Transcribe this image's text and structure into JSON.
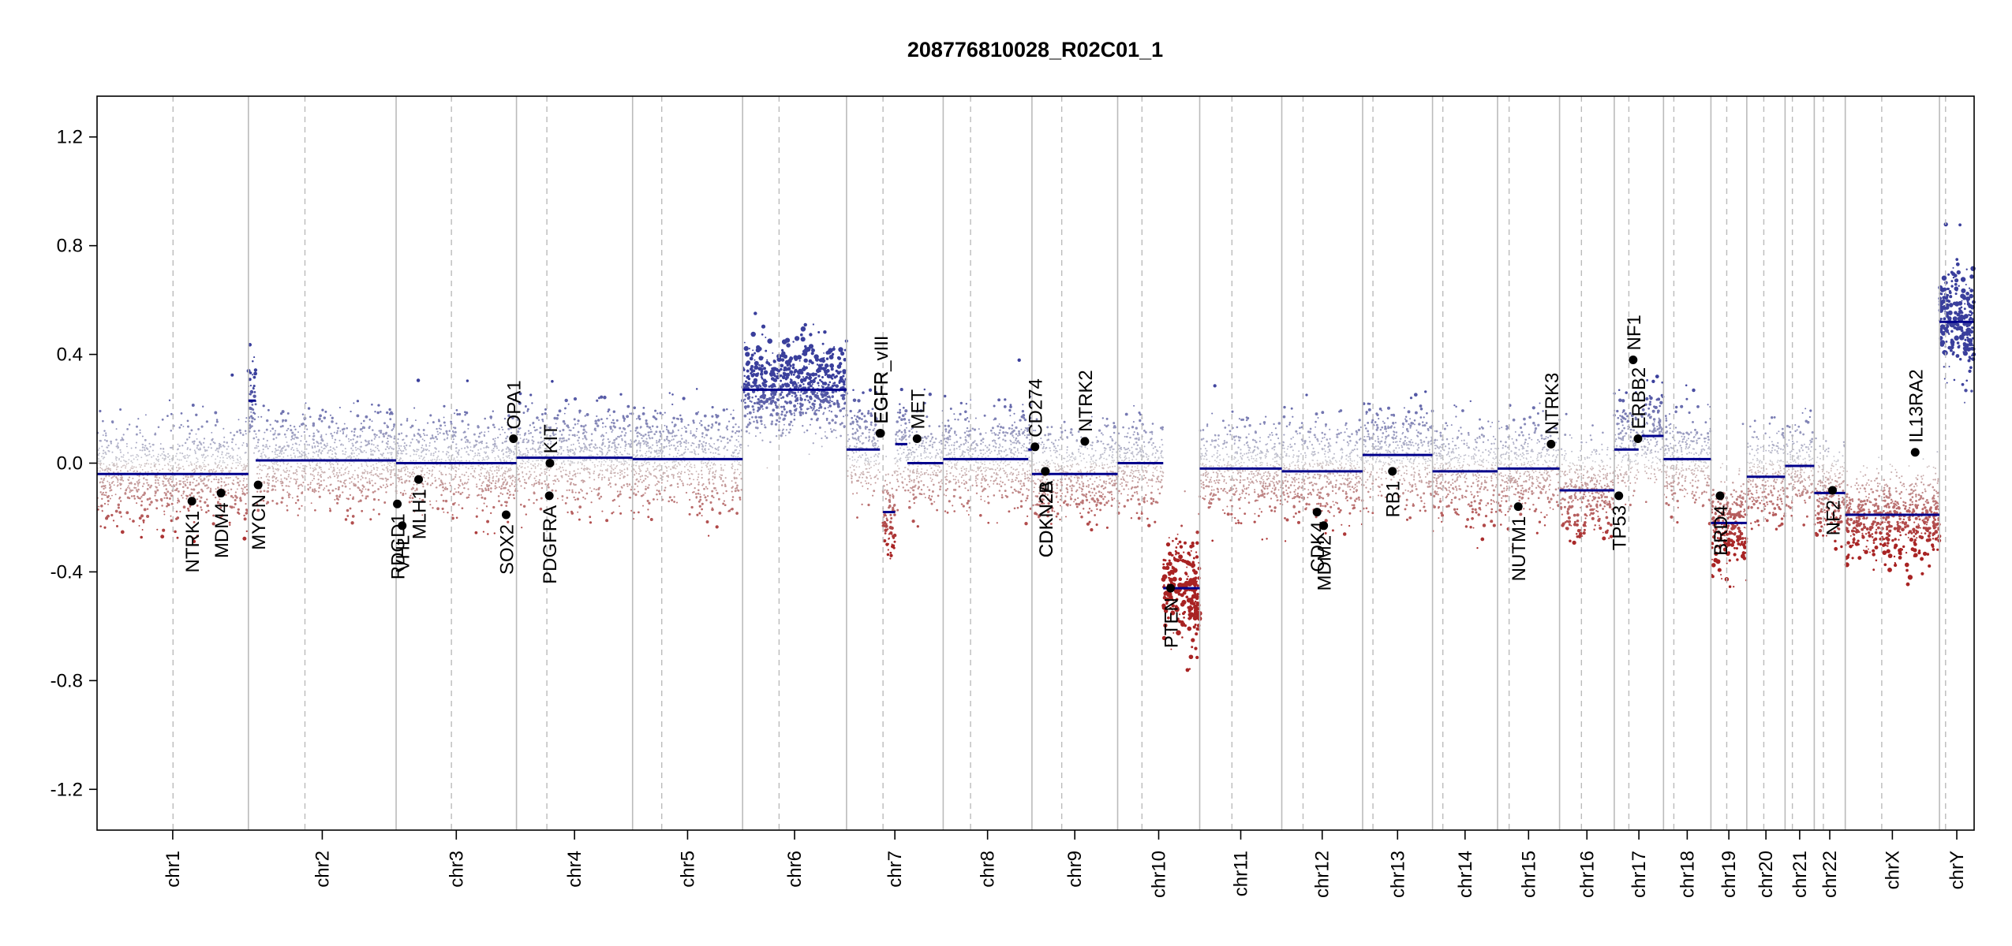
{
  "chart_data": {
    "type": "scatter",
    "title": "208776810028_R02C01_1",
    "xlabel": "",
    "ylabel": "",
    "ylim": [
      -1.35,
      1.35
    ],
    "y_ticks": [
      1.2,
      0.8,
      0.4,
      0.0,
      -0.4,
      -0.8,
      -1.2
    ],
    "y_tick_labels": [
      "1.2",
      "0.8",
      "0.4",
      "0.0",
      "-0.4",
      "-0.8",
      "-1.2"
    ],
    "chromosomes": [
      {
        "name": "chr1",
        "length_mb": 249,
        "centromere_mb": 125
      },
      {
        "name": "chr2",
        "length_mb": 243,
        "centromere_mb": 93
      },
      {
        "name": "chr3",
        "length_mb": 198,
        "centromere_mb": 91
      },
      {
        "name": "chr4",
        "length_mb": 191,
        "centromere_mb": 50
      },
      {
        "name": "chr5",
        "length_mb": 181,
        "centromere_mb": 48
      },
      {
        "name": "chr6",
        "length_mb": 171,
        "centromere_mb": 60
      },
      {
        "name": "chr7",
        "length_mb": 159,
        "centromere_mb": 60
      },
      {
        "name": "chr8",
        "length_mb": 146,
        "centromere_mb": 45
      },
      {
        "name": "chr9",
        "length_mb": 141,
        "centromere_mb": 49
      },
      {
        "name": "chr10",
        "length_mb": 135,
        "centromere_mb": 40
      },
      {
        "name": "chr11",
        "length_mb": 135,
        "centromere_mb": 53
      },
      {
        "name": "chr12",
        "length_mb": 133,
        "centromere_mb": 35
      },
      {
        "name": "chr13",
        "length_mb": 115,
        "centromere_mb": 17
      },
      {
        "name": "chr14",
        "length_mb": 107,
        "centromere_mb": 17
      },
      {
        "name": "chr15",
        "length_mb": 102,
        "centromere_mb": 19
      },
      {
        "name": "chr16",
        "length_mb": 90,
        "centromere_mb": 36
      },
      {
        "name": "chr17",
        "length_mb": 81,
        "centromere_mb": 24
      },
      {
        "name": "chr18",
        "length_mb": 78,
        "centromere_mb": 17
      },
      {
        "name": "chr19",
        "length_mb": 59,
        "centromere_mb": 26
      },
      {
        "name": "chr20",
        "length_mb": 63,
        "centromere_mb": 28
      },
      {
        "name": "chr21",
        "length_mb": 48,
        "centromere_mb": 12
      },
      {
        "name": "chr22",
        "length_mb": 51,
        "centromere_mb": 15
      },
      {
        "name": "chrX",
        "length_mb": 155,
        "centromere_mb": 60
      },
      {
        "name": "chrY",
        "length_mb": 57,
        "centromere_mb": 10
      }
    ],
    "segments": [
      {
        "chr": "chr1",
        "start": 0,
        "end": 249,
        "value": -0.04
      },
      {
        "chr": "chr2",
        "start": 0,
        "end": 12,
        "value": 0.23
      },
      {
        "chr": "chr2",
        "start": 12,
        "end": 243,
        "value": 0.01
      },
      {
        "chr": "chr3",
        "start": 0,
        "end": 198,
        "value": 0.0
      },
      {
        "chr": "chr4",
        "start": 0,
        "end": 191,
        "value": 0.02
      },
      {
        "chr": "chr5",
        "start": 0,
        "end": 181,
        "value": 0.015
      },
      {
        "chr": "chr6",
        "start": 0,
        "end": 171,
        "value": 0.27
      },
      {
        "chr": "chr7",
        "start": 0,
        "end": 55,
        "value": 0.05
      },
      {
        "chr": "chr7",
        "start": 60,
        "end": 80,
        "value": -0.18
      },
      {
        "chr": "chr7",
        "start": 80,
        "end": 100,
        "value": 0.07
      },
      {
        "chr": "chr7",
        "start": 100,
        "end": 159,
        "value": 0.0
      },
      {
        "chr": "chr8",
        "start": 0,
        "end": 140,
        "value": 0.015
      },
      {
        "chr": "chr8",
        "start": 140,
        "end": 146,
        "value": 0.05
      },
      {
        "chr": "chr9",
        "start": 0,
        "end": 141,
        "value": -0.04
      },
      {
        "chr": "chr10",
        "start": 0,
        "end": 75,
        "value": 0.0
      },
      {
        "chr": "chr10",
        "start": 75,
        "end": 135,
        "value": -0.46
      },
      {
        "chr": "chr11",
        "start": 0,
        "end": 135,
        "value": -0.02
      },
      {
        "chr": "chr12",
        "start": 0,
        "end": 133,
        "value": -0.03
      },
      {
        "chr": "chr13",
        "start": 0,
        "end": 115,
        "value": 0.03
      },
      {
        "chr": "chr14",
        "start": 0,
        "end": 107,
        "value": -0.03
      },
      {
        "chr": "chr15",
        "start": 0,
        "end": 102,
        "value": -0.02
      },
      {
        "chr": "chr16",
        "start": 0,
        "end": 90,
        "value": -0.1
      },
      {
        "chr": "chr17",
        "start": 0,
        "end": 40,
        "value": 0.05
      },
      {
        "chr": "chr17",
        "start": 45,
        "end": 81,
        "value": 0.1
      },
      {
        "chr": "chr18",
        "start": 0,
        "end": 78,
        "value": 0.015
      },
      {
        "chr": "chr19",
        "start": 0,
        "end": 59,
        "value": -0.22
      },
      {
        "chr": "chr20",
        "start": 0,
        "end": 63,
        "value": -0.05
      },
      {
        "chr": "chr21",
        "start": 0,
        "end": 48,
        "value": -0.01
      },
      {
        "chr": "chr22",
        "start": 0,
        "end": 51,
        "value": -0.11
      },
      {
        "chr": "chrX",
        "start": 0,
        "end": 155,
        "value": -0.19
      },
      {
        "chr": "chrY",
        "start": 0,
        "end": 57,
        "value": 0.52
      }
    ],
    "genes": [
      {
        "name": "NTRK1",
        "chr": "chr1",
        "pos": 156,
        "value": -0.14
      },
      {
        "name": "MDM4",
        "chr": "chr1",
        "pos": 204,
        "value": -0.11
      },
      {
        "name": "MYCN",
        "chr": "chr2",
        "pos": 16,
        "value": -0.08
      },
      {
        "name": "RDGD1",
        "chr": "chr3",
        "pos": 2,
        "value": -0.15
      },
      {
        "name": "VHL",
        "chr": "chr3",
        "pos": 10,
        "value": -0.23
      },
      {
        "name": "MLH1",
        "chr": "chr3",
        "pos": 37,
        "value": -0.06
      },
      {
        "name": "SOX2",
        "chr": "chr3",
        "pos": 181,
        "value": -0.19
      },
      {
        "name": "OPA1",
        "chr": "chr3",
        "pos": 193,
        "value": 0.09
      },
      {
        "name": "KIT",
        "chr": "chr4",
        "pos": 55,
        "value": 0.0
      },
      {
        "name": "PDGFRA",
        "chr": "chr4",
        "pos": 54,
        "value": -0.12
      },
      {
        "name": "EGFR",
        "chr": "chr7",
        "pos": 55,
        "value": 0.11
      },
      {
        "name": "EGFR_vIII",
        "chr": "chr7",
        "pos": 56,
        "value": 0.11
      },
      {
        "name": "MET",
        "chr": "chr7",
        "pos": 116,
        "value": 0.09
      },
      {
        "name": "CD274",
        "chr": "chr9",
        "pos": 5,
        "value": 0.06
      },
      {
        "name": "CDKN2A",
        "chr": "chr9",
        "pos": 22,
        "value": -0.03
      },
      {
        "name": "CDKN2B",
        "chr": "chr9",
        "pos": 22,
        "value": -0.03
      },
      {
        "name": "NTRK2",
        "chr": "chr9",
        "pos": 87,
        "value": 0.08
      },
      {
        "name": "PTEN",
        "chr": "chr10",
        "pos": 87,
        "value": -0.46
      },
      {
        "name": "CDK4",
        "chr": "chr12",
        "pos": 58,
        "value": -0.18
      },
      {
        "name": "MDM2",
        "chr": "chr12",
        "pos": 69,
        "value": -0.23
      },
      {
        "name": "RB1",
        "chr": "chr13",
        "pos": 49,
        "value": -0.03
      },
      {
        "name": "NUTM1",
        "chr": "chr15",
        "pos": 34,
        "value": -0.16
      },
      {
        "name": "NTRK3",
        "chr": "chr15",
        "pos": 88,
        "value": 0.07
      },
      {
        "name": "TP53",
        "chr": "chr17",
        "pos": 7.5,
        "value": -0.12
      },
      {
        "name": "ERBB2",
        "chr": "chr17",
        "pos": 39,
        "value": 0.09
      },
      {
        "name": "NF1",
        "chr": "chr17",
        "pos": 31,
        "value": 0.38
      },
      {
        "name": "BRD4",
        "chr": "chr19",
        "pos": 15,
        "value": -0.12
      },
      {
        "name": "NF2",
        "chr": "chr22",
        "pos": 30,
        "value": -0.1
      },
      {
        "name": "IL13RA2",
        "chr": "chrX",
        "pos": 115,
        "value": 0.04
      }
    ],
    "gene_labels": [
      {
        "text": "NTRK1",
        "above": false
      },
      {
        "text": "MDM4",
        "above": false
      },
      {
        "text": "MYCN",
        "above": false
      },
      {
        "text": "RDGD1",
        "above": false
      },
      {
        "text": "VHL",
        "above": false
      },
      {
        "text": "MLH1",
        "above": false
      },
      {
        "text": "SOX2",
        "above": false
      },
      {
        "text": "OPA1",
        "above": true
      },
      {
        "text": "KIT",
        "above": true
      },
      {
        "text": "PDGFRA",
        "above": false
      },
      {
        "text": "EGFR",
        "above": true
      },
      {
        "text": "EGFR_vIII",
        "above": true
      },
      {
        "text": "MET",
        "above": true
      },
      {
        "text": "CD274",
        "above": true
      },
      {
        "text": "CDKN2A",
        "above": false
      },
      {
        "text": "CDKN2B",
        "above": false
      },
      {
        "text": "NTRK2",
        "above": true
      },
      {
        "text": "PTEN",
        "above": false
      },
      {
        "text": "CDK4",
        "above": false
      },
      {
        "text": "MDM2",
        "above": false
      },
      {
        "text": "RB1",
        "above": false
      },
      {
        "text": "NUTM1",
        "above": false
      },
      {
        "text": "NTRK3",
        "above": true
      },
      {
        "text": "TP53",
        "above": false
      },
      {
        "text": "ERBB2",
        "above": true
      },
      {
        "text": "NF1",
        "above": true
      },
      {
        "text": "BRD4",
        "above": false
      },
      {
        "text": "NF2",
        "above": false
      },
      {
        "text": "IL13RA2",
        "above": true
      }
    ],
    "colors": {
      "segment": "#00008b",
      "gain": "#3a3f9c",
      "neutral": "#c8c8c8",
      "loss": "#a82323",
      "strong_loss": "#b00000",
      "separator": "#bbbbbb",
      "gene_point": "#000000"
    }
  }
}
